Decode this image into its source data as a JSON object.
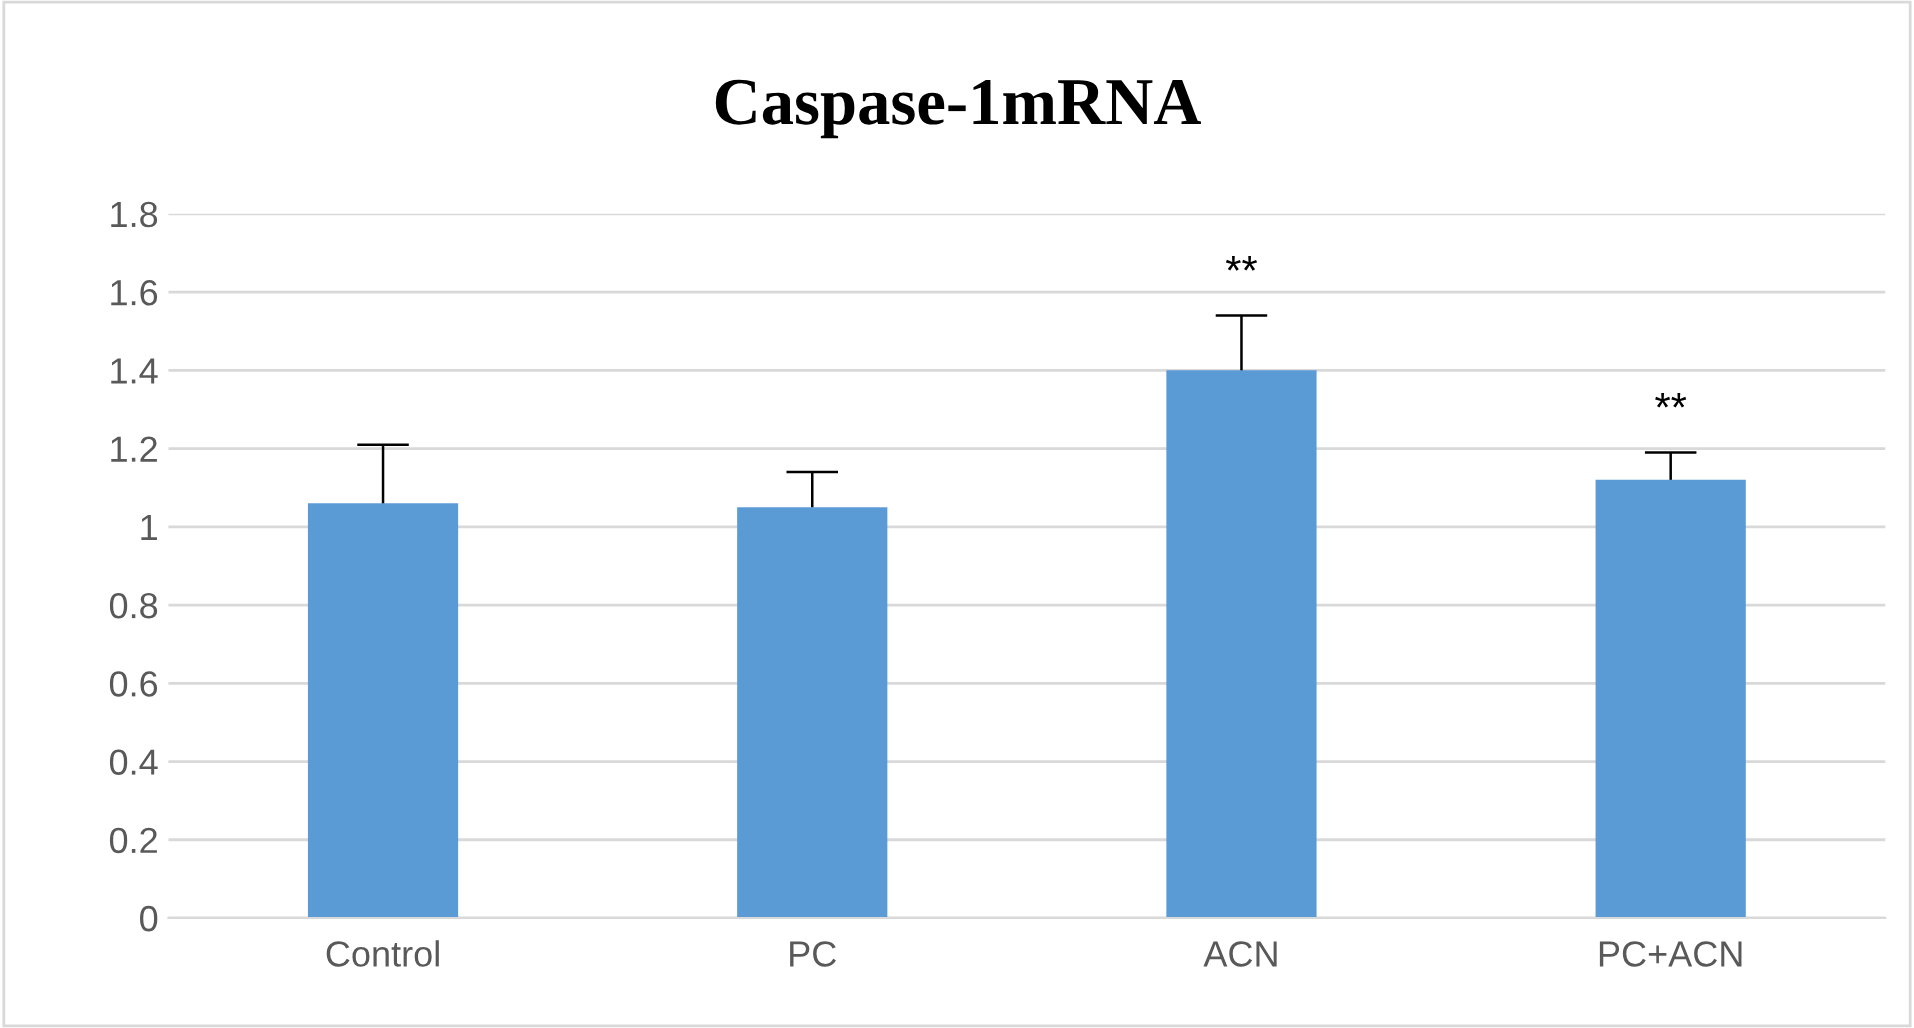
{
  "chart_data": {
    "type": "bar",
    "title": "Caspase-1mRNA",
    "categories": [
      "Control",
      "PC",
      "ACN",
      "PC+ACN"
    ],
    "values": [
      1.06,
      1.05,
      1.4,
      1.12
    ],
    "errors": [
      [
        1.06,
        1.21
      ],
      [
        1.05,
        1.14
      ],
      [
        1.4,
        1.54
      ],
      [
        1.12,
        1.19
      ]
    ],
    "color": "#5b9bd5",
    "ylim": [
      0,
      1.8
    ],
    "yticks": [
      0,
      0.2,
      0.4,
      0.6,
      0.8,
      1,
      1.2,
      1.4,
      1.6,
      1.8
    ],
    "grid": "y",
    "annotations": [
      {
        "text": "**",
        "x": "ACN",
        "y": 1.54
      },
      {
        "text": "**",
        "x": "PC+ACN",
        "y": 1.19
      }
    ]
  }
}
